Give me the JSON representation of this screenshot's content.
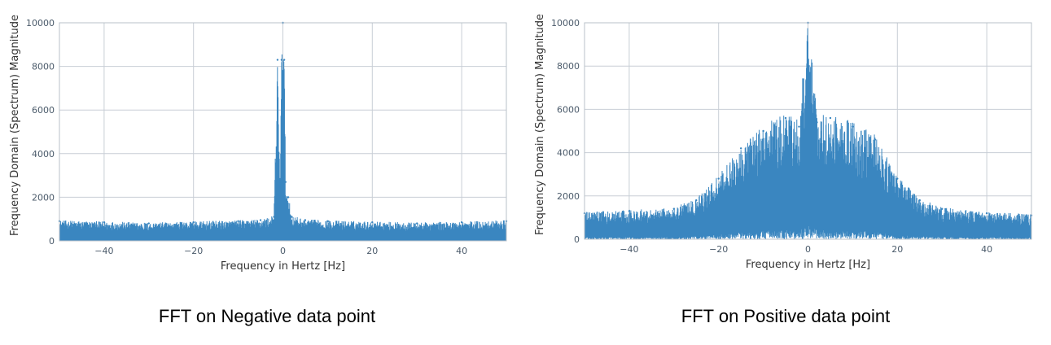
{
  "captions": {
    "left": "FFT on Negative data point",
    "right": "FFT on Positive data point"
  },
  "colors": {
    "series": "#3a86c0",
    "grid": "#c8ced6",
    "frame": "#b8c0c8"
  },
  "chart_data": [
    {
      "type": "line",
      "xlabel": "Frequency in Hertz [Hz]",
      "ylabel": "Frequency Domain (Spectrum) Magnitude",
      "xlim": [
        -50,
        50
      ],
      "ylim": [
        0,
        10000
      ],
      "x_ticks": [
        -40,
        -20,
        0,
        20,
        40
      ],
      "x_tick_labels": [
        "−40",
        "−20",
        "0",
        "20",
        "40"
      ],
      "y_ticks": [
        0,
        2000,
        4000,
        6000,
        8000,
        10000
      ],
      "y_tick_labels": [
        "0",
        "2000",
        "4000",
        "6000",
        "8000",
        "10000"
      ],
      "grid": true,
      "series": [
        {
          "x": [
            -50,
            -40,
            -30,
            -20,
            -10,
            -5,
            -2,
            -1.2,
            -0.6,
            -0.3,
            0,
            0.3,
            0.6,
            1.2,
            2,
            5,
            10,
            20,
            30,
            40,
            50
          ],
          "y": [
            900,
            850,
            800,
            850,
            900,
            950,
            1100,
            8300,
            2700,
            8300,
            10000,
            8300,
            2700,
            2000,
            1100,
            950,
            900,
            850,
            800,
            850,
            900
          ]
        }
      ]
    },
    {
      "type": "line",
      "xlabel": "Frequency in Hertz [Hz]",
      "ylabel": "Frequency Domain (Spectrum) Magnitude",
      "xlim": [
        -50,
        50
      ],
      "ylim": [
        0,
        10000
      ],
      "x_ticks": [
        -40,
        -20,
        0,
        20,
        40
      ],
      "x_tick_labels": [
        "−40",
        "−20",
        "0",
        "20",
        "40"
      ],
      "y_ticks": [
        0,
        2000,
        4000,
        6000,
        8000,
        10000
      ],
      "y_tick_labels": [
        "0",
        "2000",
        "4000",
        "6000",
        "8000",
        "10000"
      ],
      "grid": true,
      "series": [
        {
          "x": [
            -50,
            -40,
            -30,
            -25,
            -20,
            -15,
            -10,
            -5,
            -2,
            0,
            2,
            5,
            10,
            15,
            20,
            25,
            30,
            40,
            50
          ],
          "y": [
            1200,
            1300,
            1400,
            1800,
            2800,
            4200,
            5000,
            5600,
            5200,
            10000,
            5400,
            5600,
            5200,
            4600,
            2800,
            1800,
            1400,
            1200,
            1100
          ]
        }
      ]
    }
  ]
}
